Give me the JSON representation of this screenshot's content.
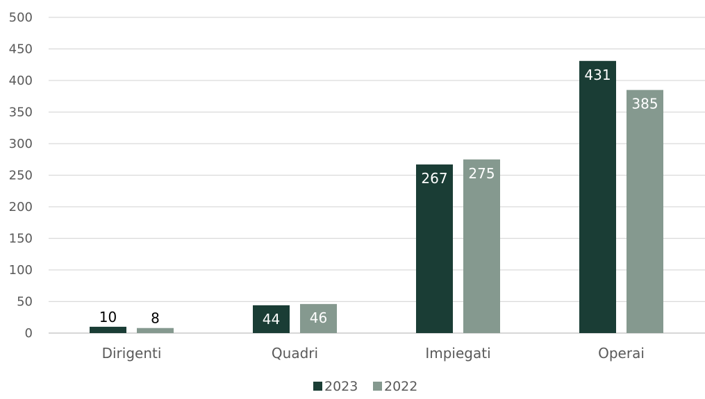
{
  "chart_data": {
    "type": "bar",
    "categories": [
      "Dirigenti",
      "Quadri",
      "Impiegati",
      "Operai"
    ],
    "series": [
      {
        "name": "2023",
        "values": [
          10,
          44,
          267,
          431
        ],
        "color": "#1a3d35"
      },
      {
        "name": "2022",
        "values": [
          8,
          46,
          275,
          385
        ],
        "color": "#85998f"
      }
    ],
    "ylim": [
      0,
      500
    ],
    "yticks": [
      0,
      50,
      100,
      150,
      200,
      250,
      300,
      350,
      400,
      450,
      500
    ],
    "grid": true,
    "legend_position": "bottom-center",
    "title": "",
    "xlabel": "",
    "ylabel": ""
  }
}
